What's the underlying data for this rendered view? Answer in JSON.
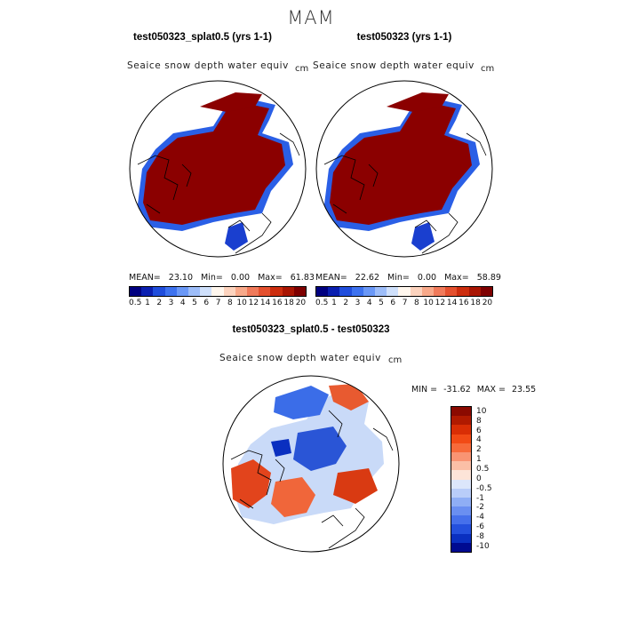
{
  "figure": {
    "season": "MAM",
    "variable": "Seaice snow depth water equiv",
    "units": "cm"
  },
  "chart_data": [
    {
      "type": "heatmap",
      "title": "test050323_splat0.5 (yrs 1-1)",
      "subtitle": "Seaice snow depth water equiv",
      "units": "cm",
      "projection": "north polar stereographic",
      "stats": {
        "mean_label": "MEAN=",
        "mean": "23.10",
        "min_label": "Min=",
        "min": "0.00",
        "max_label": "Max=",
        "max": "61.83"
      },
      "colorbar": {
        "ticks": [
          "0.5",
          "1",
          "2",
          "3",
          "4",
          "5",
          "6",
          "7",
          "8",
          "10",
          "12",
          "14",
          "16",
          "18",
          "20"
        ],
        "colors": [
          "#000080",
          "#0a1fb0",
          "#1f4ddc",
          "#3d72ef",
          "#6a98f7",
          "#9dbdf9",
          "#cfe0fb",
          "#fff7ee",
          "#fcd3be",
          "#f8a98a",
          "#f07a5a",
          "#e4502e",
          "#cc2d0e",
          "#a91503",
          "#7e0000"
        ]
      }
    },
    {
      "type": "heatmap",
      "title": "test050323 (yrs 1-1)",
      "subtitle": "Seaice snow depth water equiv",
      "units": "cm",
      "projection": "north polar stereographic",
      "stats": {
        "mean_label": "MEAN=",
        "mean": "22.62",
        "min_label": "Min=",
        "min": "0.00",
        "max_label": "Max=",
        "max": "58.89"
      },
      "colorbar": {
        "ticks": [
          "0.5",
          "1",
          "2",
          "3",
          "4",
          "5",
          "6",
          "7",
          "8",
          "10",
          "12",
          "14",
          "16",
          "18",
          "20"
        ],
        "colors": [
          "#000080",
          "#0a1fb0",
          "#1f4ddc",
          "#3d72ef",
          "#6a98f7",
          "#9dbdf9",
          "#cfe0fb",
          "#fff7ee",
          "#fcd3be",
          "#f8a98a",
          "#f07a5a",
          "#e4502e",
          "#cc2d0e",
          "#a91503",
          "#7e0000"
        ]
      }
    },
    {
      "type": "heatmap",
      "title": "test050323_splat0.5 - test050323",
      "subtitle": "Seaice snow depth water equiv",
      "units": "cm",
      "projection": "north polar stereographic",
      "stats": {
        "min_label": "MIN =",
        "min": "-31.62",
        "max_label": "MAX =",
        "max": "23.55"
      },
      "colorbar": {
        "ticks": [
          "10",
          "8",
          "6",
          "4",
          "2",
          "1",
          "0.5",
          "0",
          "-0.5",
          "-1",
          "-2",
          "-4",
          "-6",
          "-8",
          "-10"
        ],
        "colors": [
          "#8b0a00",
          "#b01a00",
          "#d92e05",
          "#f24a15",
          "#f76a3a",
          "#f99473",
          "#fbbfa6",
          "#fde4d8",
          "#dce6fb",
          "#b9cdf9",
          "#8faef5",
          "#6a8ff1",
          "#4670eb",
          "#2450dd",
          "#0a2fc0",
          "#000a90"
        ]
      }
    }
  ]
}
